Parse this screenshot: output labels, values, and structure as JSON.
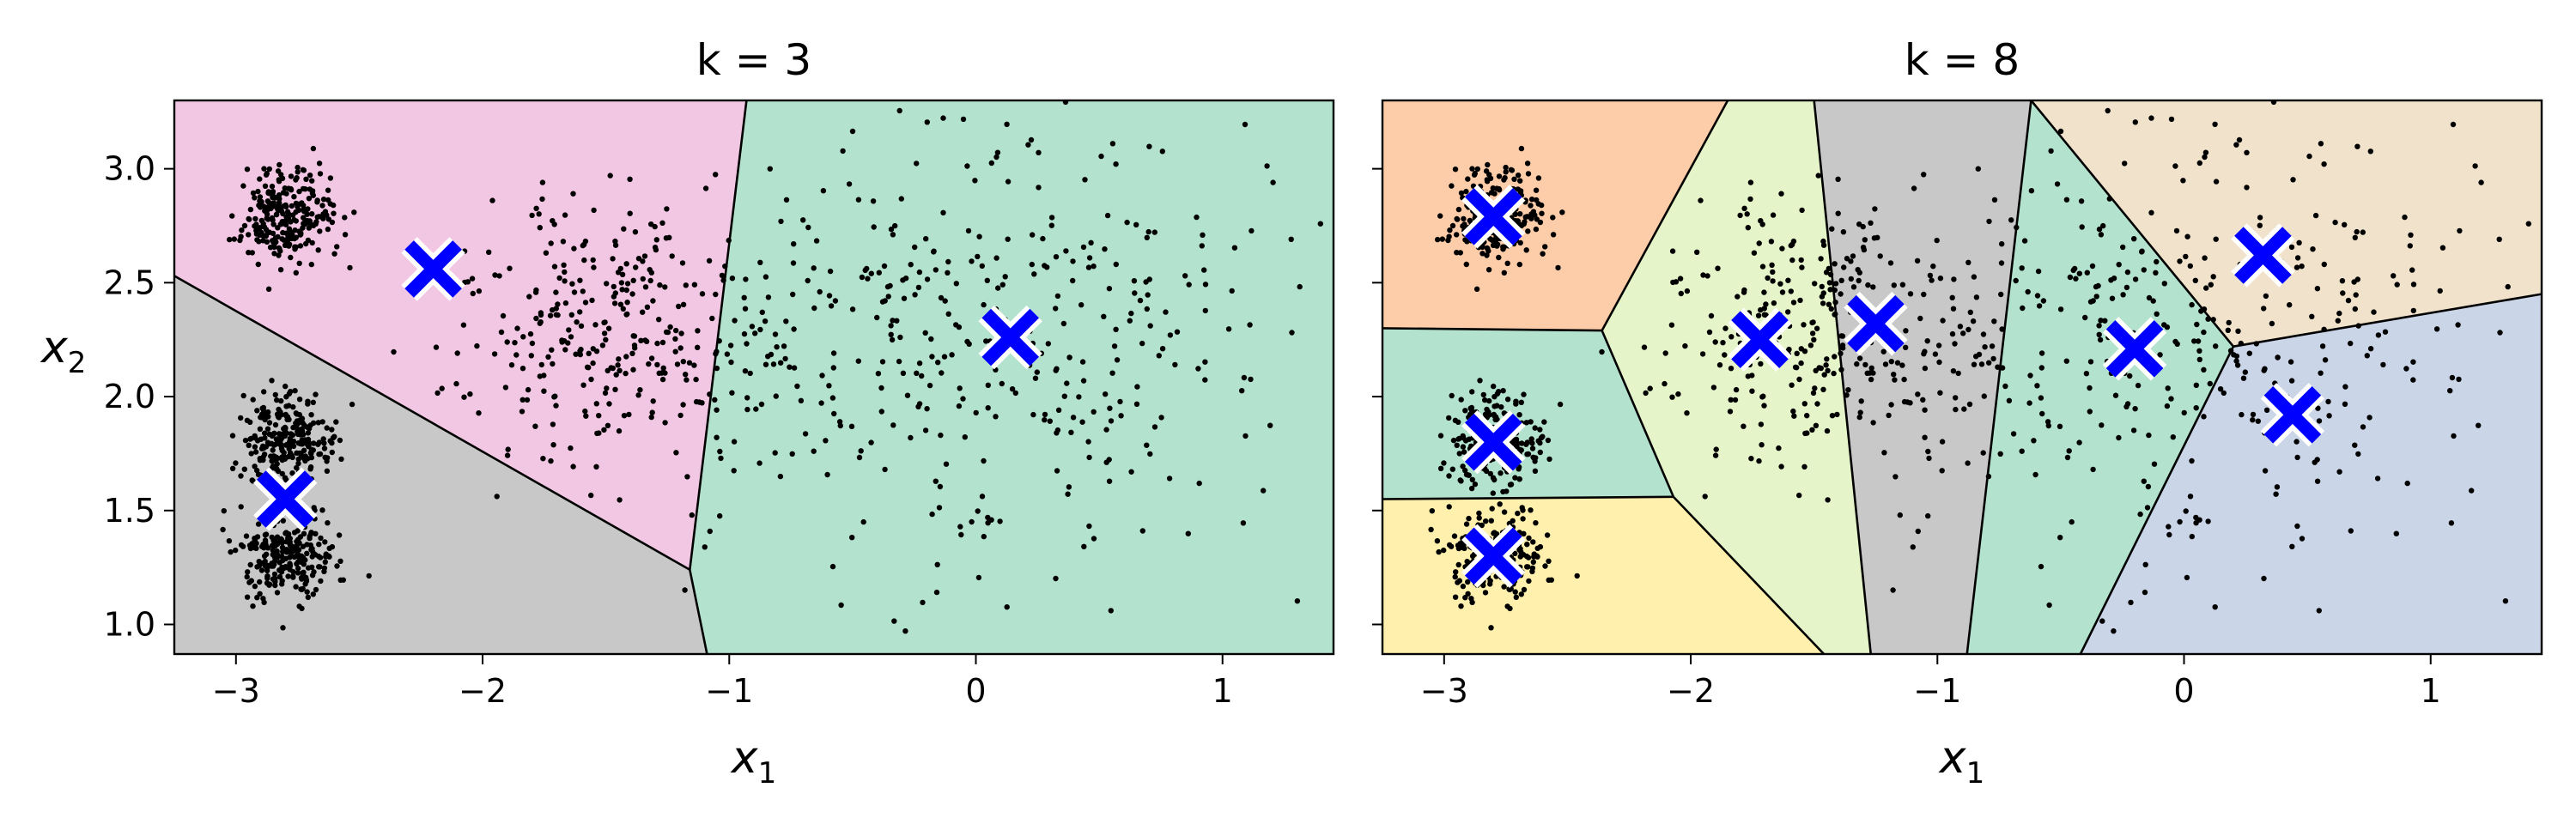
{
  "chart_data": [
    {
      "type": "scatter",
      "title": "k = 3",
      "xlabel": "x",
      "xlabel_sub": "1",
      "ylabel": "x",
      "ylabel_sub": "2",
      "xlim": [
        -3.25,
        1.45
      ],
      "ylim": [
        0.87,
        3.3
      ],
      "xticks": [
        -3,
        -2,
        -1,
        0,
        1
      ],
      "xtick_labels": [
        "−3",
        "−2",
        "−1",
        "0",
        "1"
      ],
      "yticks": [
        1.0,
        1.5,
        2.0,
        2.5,
        3.0
      ],
      "ytick_labels": [
        "1.0",
        "1.5",
        "2.0",
        "2.5",
        "3.0"
      ],
      "centroid_color": "#0000ff",
      "grid": false,
      "regions": [
        {
          "color": "#f2c7e3",
          "polygon": [
            [
              -3.25,
              3.3
            ],
            [
              -0.93,
              3.3
            ],
            [
              -1.16,
              1.24
            ],
            [
              -3.25,
              2.53
            ]
          ]
        },
        {
          "color": "#c8c8c8",
          "polygon": [
            [
              -3.25,
              2.53
            ],
            [
              -1.16,
              1.24
            ],
            [
              -1.09,
              0.87
            ],
            [
              -3.25,
              0.87
            ]
          ]
        },
        {
          "color": "#b3e3ce",
          "polygon": [
            [
              -0.93,
              3.3
            ],
            [
              1.45,
              3.3
            ],
            [
              1.45,
              0.87
            ],
            [
              -1.09,
              0.87
            ],
            [
              -1.16,
              1.24
            ]
          ]
        }
      ],
      "boundaries": [
        [
          [
            -3.25,
            2.53
          ],
          [
            -1.16,
            1.24
          ]
        ],
        [
          [
            -0.93,
            3.3
          ],
          [
            -1.16,
            1.24
          ]
        ],
        [
          [
            -1.16,
            1.24
          ],
          [
            -1.09,
            0.87
          ]
        ]
      ],
      "centroids": [
        {
          "x": -2.2,
          "y": 2.56
        },
        {
          "x": 0.14,
          "y": 2.26
        },
        {
          "x": -2.8,
          "y": 1.55
        }
      ],
      "blobs": [
        {
          "cx": -2.8,
          "cy": 2.8,
          "sx": 0.1,
          "sy": 0.1,
          "n": 250
        },
        {
          "cx": -2.8,
          "cy": 1.8,
          "sx": 0.1,
          "sy": 0.1,
          "n": 250
        },
        {
          "cx": -2.8,
          "cy": 1.3,
          "sx": 0.1,
          "sy": 0.1,
          "n": 250
        },
        {
          "cx": -1.47,
          "cy": 2.28,
          "sx": 0.3,
          "sy": 0.3,
          "n": 300
        },
        {
          "cx": 0.0,
          "cy": 2.25,
          "sx": 0.6,
          "sy": 0.5,
          "n": 400
        }
      ]
    },
    {
      "type": "scatter",
      "title": "k = 8",
      "xlabel": "x",
      "xlabel_sub": "1",
      "xlim": [
        -3.25,
        1.45
      ],
      "ylim": [
        0.87,
        3.3
      ],
      "xticks": [
        -3,
        -2,
        -1,
        0,
        1
      ],
      "xtick_labels": [
        "−3",
        "−2",
        "−1",
        "0",
        "1"
      ],
      "yticks": [
        1.0,
        1.5,
        2.0,
        2.5,
        3.0
      ],
      "ytick_labels": [],
      "centroid_color": "#0000ff",
      "grid": false,
      "regions": [
        {
          "color": "#fdcda9",
          "polygon": [
            [
              -3.25,
              3.3
            ],
            [
              -1.85,
              3.3
            ],
            [
              -2.36,
              2.29
            ],
            [
              -3.25,
              2.3
            ]
          ]
        },
        {
          "color": "#b3e3ce",
          "polygon": [
            [
              -3.25,
              2.3
            ],
            [
              -2.36,
              2.29
            ],
            [
              -2.07,
              1.56
            ],
            [
              -3.25,
              1.55
            ]
          ]
        },
        {
          "color": "#fff1ad",
          "polygon": [
            [
              -3.25,
              1.55
            ],
            [
              -2.07,
              1.56
            ],
            [
              -1.46,
              0.87
            ],
            [
              -3.25,
              0.87
            ]
          ]
        },
        {
          "color": "#e6f5c9",
          "polygon": [
            [
              -1.85,
              3.3
            ],
            [
              -1.5,
              3.3
            ],
            [
              -1.27,
              0.87
            ],
            [
              -1.46,
              0.87
            ],
            [
              -2.07,
              1.56
            ],
            [
              -2.36,
              2.29
            ]
          ]
        },
        {
          "color": "#c8c8c8",
          "polygon": [
            [
              -1.5,
              3.3
            ],
            [
              -0.62,
              3.3
            ],
            [
              -0.88,
              0.87
            ],
            [
              -1.27,
              0.87
            ]
          ]
        },
        {
          "color": "#b3e3ce",
          "polygon": [
            [
              -0.62,
              3.3
            ],
            [
              0.2,
              2.22
            ],
            [
              -0.42,
              0.87
            ],
            [
              -0.88,
              0.87
            ]
          ]
        },
        {
          "color": "#f1e2cc",
          "polygon": [
            [
              -0.62,
              3.3
            ],
            [
              1.45,
              3.3
            ],
            [
              1.45,
              2.45
            ],
            [
              0.2,
              2.22
            ]
          ]
        },
        {
          "color": "#cbd5e8",
          "polygon": [
            [
              0.2,
              2.22
            ],
            [
              1.45,
              2.45
            ],
            [
              1.45,
              0.87
            ],
            [
              -0.42,
              0.87
            ]
          ]
        }
      ],
      "boundaries": [
        [
          [
            -1.85,
            3.3
          ],
          [
            -2.36,
            2.29
          ]
        ],
        [
          [
            -3.25,
            2.3
          ],
          [
            -2.36,
            2.29
          ]
        ],
        [
          [
            -2.36,
            2.29
          ],
          [
            -2.07,
            1.56
          ]
        ],
        [
          [
            -3.25,
            1.55
          ],
          [
            -2.07,
            1.56
          ]
        ],
        [
          [
            -2.07,
            1.56
          ],
          [
            -1.46,
            0.87
          ]
        ],
        [
          [
            -1.5,
            3.3
          ],
          [
            -1.27,
            0.87
          ]
        ],
        [
          [
            -0.62,
            3.3
          ],
          [
            -0.88,
            0.87
          ]
        ],
        [
          [
            -0.62,
            3.3
          ],
          [
            0.2,
            2.22
          ]
        ],
        [
          [
            0.2,
            2.22
          ],
          [
            1.45,
            2.45
          ]
        ],
        [
          [
            0.2,
            2.22
          ],
          [
            -0.42,
            0.87
          ]
        ]
      ],
      "centroids": [
        {
          "x": -2.8,
          "y": 2.79
        },
        {
          "x": -1.72,
          "y": 2.25
        },
        {
          "x": -1.25,
          "y": 2.32
        },
        {
          "x": -2.8,
          "y": 1.8
        },
        {
          "x": -2.8,
          "y": 1.3
        },
        {
          "x": -0.2,
          "y": 2.21
        },
        {
          "x": 0.32,
          "y": 2.62
        },
        {
          "x": 0.44,
          "y": 1.92
        }
      ],
      "blobs": [
        {
          "cx": -2.8,
          "cy": 2.8,
          "sx": 0.1,
          "sy": 0.1,
          "n": 250
        },
        {
          "cx": -2.8,
          "cy": 1.8,
          "sx": 0.1,
          "sy": 0.1,
          "n": 250
        },
        {
          "cx": -2.8,
          "cy": 1.3,
          "sx": 0.1,
          "sy": 0.1,
          "n": 250
        },
        {
          "cx": -1.47,
          "cy": 2.28,
          "sx": 0.3,
          "sy": 0.3,
          "n": 300
        },
        {
          "cx": 0.0,
          "cy": 2.25,
          "sx": 0.6,
          "sy": 0.5,
          "n": 400
        }
      ]
    }
  ]
}
